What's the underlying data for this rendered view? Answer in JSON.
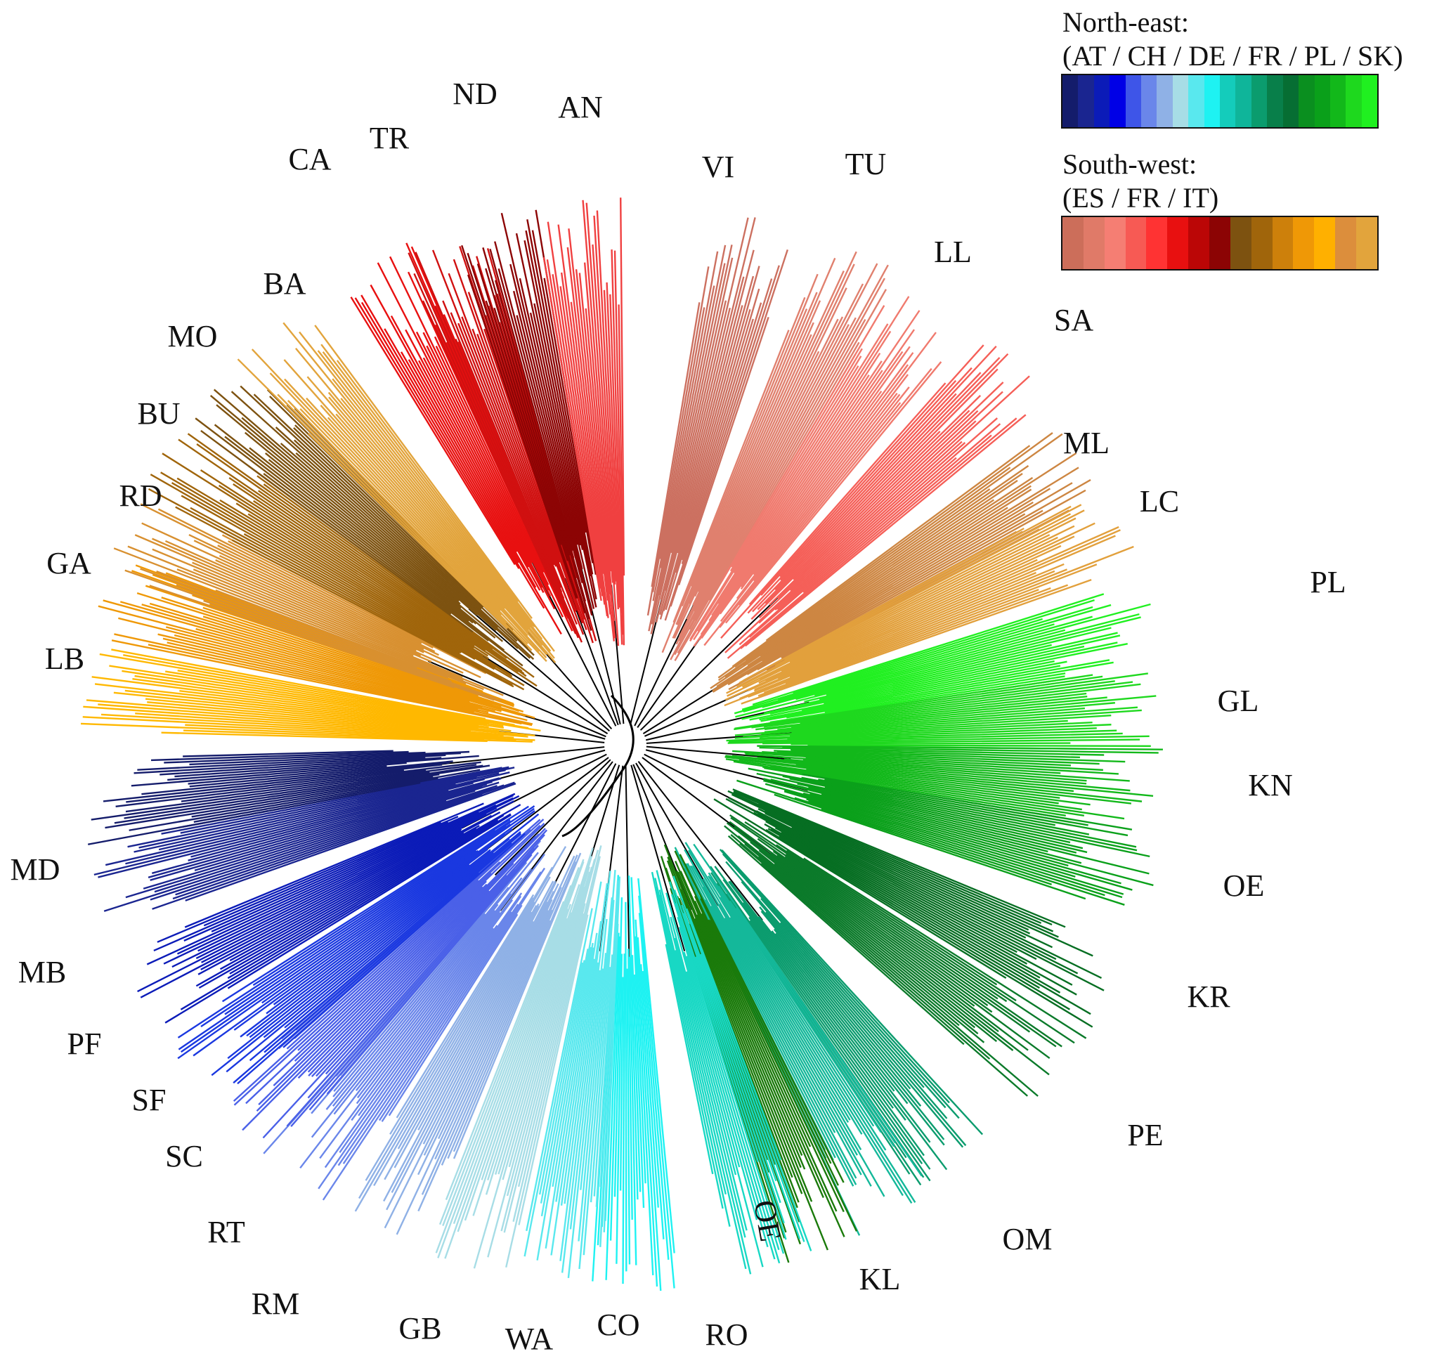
{
  "legend": {
    "north_east": {
      "title": "North-east:",
      "countries": "(AT / CH / DE / FR / PL / SK)",
      "swatches": [
        "#141c6b",
        "#1a2590",
        "#0b1bb8",
        "#0000e6",
        "#3e55e8",
        "#6a86ea",
        "#8fb1e6",
        "#a7dde6",
        "#59e8ee",
        "#1ef2f2",
        "#14ccbb",
        "#0fb59a",
        "#0b9c6e",
        "#087f4a",
        "#066e33",
        "#0a8f1f",
        "#0aa01a",
        "#12b81a",
        "#1ed81e",
        "#20f020"
      ]
    },
    "south_west": {
      "title": "South-west:",
      "countries": "(ES / FR / IT)",
      "swatches": [
        "#cc6e5a",
        "#e07a68",
        "#f57e73",
        "#f75a54",
        "#ff3333",
        "#e81010",
        "#bb0606",
        "#8c0404",
        "#7d5210",
        "#a0650b",
        "#cd800b",
        "#ef9806",
        "#ffb000",
        "#dc8e3c",
        "#e2a43c"
      ]
    }
  },
  "groups": [
    {
      "label": "VI",
      "color": "#cc7060"
    },
    {
      "label": "TU",
      "color": "#e0806e"
    },
    {
      "label": "LL",
      "color": "#f07a6e"
    },
    {
      "label": "SA",
      "color": "#f55f58"
    },
    {
      "label": "ML",
      "color": "#cd8642"
    },
    {
      "label": "LC",
      "color": "#e2a03c"
    },
    {
      "label": "PL",
      "color": "#20f020"
    },
    {
      "label": "GL",
      "color": "#1ed81e"
    },
    {
      "label": "KN",
      "color": "#12b81a"
    },
    {
      "label": "OE",
      "color": "#0aa01a"
    },
    {
      "label": "KR",
      "color": "#066e22"
    },
    {
      "label": "PE",
      "color": "#0b7a2a"
    },
    {
      "label": "OM",
      "color": "#0b9c6e"
    },
    {
      "label": "KL",
      "color": "#14b89a"
    },
    {
      "label": "OE",
      "color": "#1a7a0a"
    },
    {
      "label": "RO",
      "color": "#18d8c4"
    },
    {
      "label": "CO",
      "color": "#1ef2f2"
    },
    {
      "label": "WA",
      "color": "#59e8ee"
    },
    {
      "label": "GB",
      "color": "#a7dde6"
    },
    {
      "label": "RM",
      "color": "#8fb1e6"
    },
    {
      "label": "RT",
      "color": "#6a86ea"
    },
    {
      "label": "SC",
      "color": "#4a60e8"
    },
    {
      "label": "SF",
      "color": "#1a38e0"
    },
    {
      "label": "PF",
      "color": "#0b1bb8"
    },
    {
      "label": "MB",
      "color": "#1a2590"
    },
    {
      "label": "MD",
      "color": "#141c6b"
    },
    {
      "label": "LB",
      "color": "#ffb800"
    },
    {
      "label": "GA",
      "color": "#ef9806"
    },
    {
      "label": "RD",
      "color": "#d89030"
    },
    {
      "label": "BU",
      "color": "#a0650b"
    },
    {
      "label": "MO",
      "color": "#7d5210"
    },
    {
      "label": "BA",
      "color": "#e2a43c"
    },
    {
      "label": "CA",
      "color": "#e81010"
    },
    {
      "label": "TR",
      "color": "#d01010"
    },
    {
      "label": "ND",
      "color": "#8c0404"
    },
    {
      "label": "AN",
      "color": "#f04040"
    }
  ]
}
